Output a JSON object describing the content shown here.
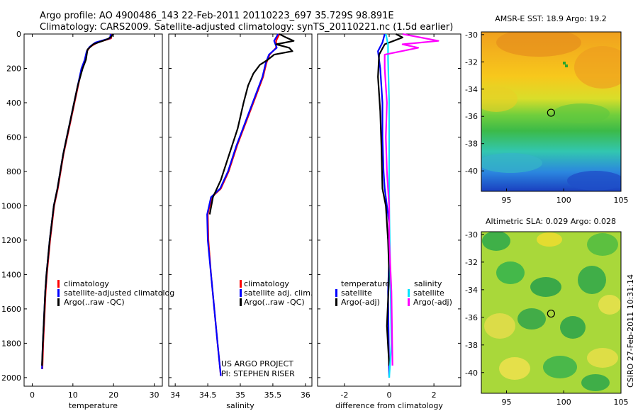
{
  "header": {
    "line1": "Argo profile: AO 4900486_143 22-Feb-2011 20110223_697 35.729S 98.891E",
    "line2": "Climatology: CARS2009. Satellite-adjusted climatology: synTS_20110221.nc (1.5d earlier)"
  },
  "colors": {
    "climatology": "#ff0000",
    "satellite": "#0000ff",
    "argo": "#000000",
    "sat_salinity": "#00e5ff",
    "argo_salinity": "#ff00ff"
  },
  "chart_data": [
    {
      "type": "line",
      "id": "temperature",
      "xlabel": "temperature",
      "xlim": [
        -2,
        32
      ],
      "ylim": [
        2050,
        0
      ],
      "xticks": [
        "0",
        "10",
        "20",
        "30"
      ],
      "xtick_values": [
        0,
        10,
        20,
        30
      ],
      "yticks": [
        "0",
        "200",
        "400",
        "600",
        "800",
        "1000",
        "1200",
        "1400",
        "1600",
        "1800",
        "2000"
      ],
      "ytick_values": [
        0,
        200,
        400,
        600,
        800,
        1000,
        1200,
        1400,
        1600,
        1800,
        2000
      ],
      "legend": [
        "climatology",
        "satellite-adjusted climatolog",
        "Argo(..raw -QC)"
      ],
      "series": [
        {
          "name": "climatology",
          "color_key": "climatology",
          "x": [
            19.6,
            19.4,
            16,
            14.2,
            13.5,
            13,
            12.2,
            11.3,
            10.4,
            9.5,
            8.6,
            7.7,
            6.3,
            5.4,
            4.9,
            4.4,
            4.0,
            3.6,
            3.3,
            3.0,
            2.7,
            2.5
          ],
          "y": [
            0,
            25,
            50,
            75,
            100,
            150,
            200,
            300,
            400,
            500,
            600,
            700,
            900,
            1000,
            1100,
            1200,
            1300,
            1400,
            1500,
            1650,
            1800,
            1950
          ]
        },
        {
          "name": "satellite-adjusted climatolog",
          "color_key": "satellite",
          "x": [
            19.3,
            19.1,
            15.5,
            14.1,
            13.4,
            12.9,
            12.1,
            11.2,
            10.3,
            9.4,
            8.5,
            7.6,
            6.2,
            5.3,
            4.8,
            4.3,
            3.9,
            3.5,
            3.2,
            2.9,
            2.6,
            2.4
          ],
          "y": [
            0,
            25,
            50,
            75,
            100,
            150,
            200,
            300,
            400,
            500,
            600,
            700,
            900,
            1000,
            1100,
            1200,
            1300,
            1400,
            1500,
            1650,
            1800,
            1950
          ]
        },
        {
          "name": "Argo(..raw -QC)",
          "color_key": "argo",
          "x": [
            19.8,
            19.5,
            18.5,
            15,
            13.6,
            13.2,
            12.4,
            11.2,
            10.3,
            9.4,
            8.5,
            7.6,
            6.2,
            5.3,
            4.8,
            4.3,
            3.9,
            3.5,
            3.2,
            2.9,
            2.6,
            2.4
          ],
          "y": [
            0,
            15,
            30,
            60,
            90,
            150,
            200,
            300,
            400,
            500,
            600,
            700,
            900,
            1000,
            1100,
            1200,
            1300,
            1400,
            1500,
            1650,
            1800,
            1930
          ]
        }
      ]
    },
    {
      "type": "line",
      "id": "salinity",
      "xlabel": "salinity",
      "xlim": [
        33.9,
        36.1
      ],
      "ylim": [
        2050,
        0
      ],
      "xticks": [
        "34",
        "34.5",
        "35",
        "35.5",
        "36"
      ],
      "xtick_values": [
        34,
        34.5,
        35,
        35.5,
        36
      ],
      "legend": [
        "climatology",
        "satellite adj. clim.",
        "Argo(..raw -QC)"
      ],
      "series": [
        {
          "name": "climatology",
          "color_key": "climatology",
          "x": [
            35.6,
            35.55,
            35.55,
            35.45,
            35.4,
            35.35,
            35.25,
            35.1,
            34.95,
            34.82,
            34.7,
            34.56,
            34.5,
            34.51,
            34.55,
            34.6,
            34.65,
            34.7
          ],
          "y": [
            0,
            40,
            80,
            120,
            170,
            250,
            350,
            500,
            650,
            800,
            900,
            950,
            1050,
            1200,
            1400,
            1600,
            1800,
            1990
          ]
        },
        {
          "name": "satellite adj. clim.",
          "color_key": "satellite",
          "x": [
            35.58,
            35.52,
            35.56,
            35.44,
            35.39,
            35.34,
            35.24,
            35.09,
            34.94,
            34.81,
            34.69,
            34.55,
            34.49,
            34.5,
            34.55,
            34.6,
            34.65,
            34.7
          ],
          "y": [
            0,
            40,
            80,
            120,
            170,
            250,
            350,
            500,
            650,
            800,
            900,
            950,
            1050,
            1200,
            1400,
            1600,
            1800,
            1990
          ]
        },
        {
          "name": "Argo(..raw -QC)",
          "color_key": "argo",
          "x": [
            35.6,
            35.7,
            35.82,
            35.55,
            35.75,
            35.8,
            35.52,
            35.42,
            35.3,
            35.2,
            35.12,
            35.05,
            34.96,
            34.83,
            34.7,
            34.58,
            34.53
          ],
          "y": [
            0,
            20,
            40,
            60,
            80,
            100,
            120,
            150,
            180,
            230,
            300,
            400,
            550,
            700,
            850,
            950,
            1050
          ]
        }
      ]
    },
    {
      "type": "line",
      "id": "difference",
      "xlabel": "difference from climatology",
      "xlim": [
        -3.2,
        3.2
      ],
      "ylim": [
        2050,
        0
      ],
      "xticks": [
        "-2",
        "0",
        "2"
      ],
      "xtick_values": [
        -2,
        0,
        2
      ],
      "legend_headers": [
        "temperature",
        "salinity"
      ],
      "legend": [
        "satellite",
        "Argo(-adj)",
        "satellite",
        "Argo(-adj)"
      ],
      "series": [
        {
          "name": "temperature satellite",
          "color_key": "satellite",
          "x": [
            -0.2,
            -0.3,
            -0.5,
            -0.4,
            -0.3,
            -0.3,
            -0.25,
            -0.2,
            -0.1,
            0.0,
            0.0,
            -0.05,
            0.0
          ],
          "y": [
            0,
            50,
            100,
            200,
            400,
            600,
            800,
            900,
            1000,
            1100,
            1300,
            1500,
            2000
          ]
        },
        {
          "name": "temperature Argo(-adj)",
          "color_key": "argo",
          "x": [
            0.3,
            0.6,
            -0.2,
            -0.45,
            -0.5,
            -0.4,
            -0.35,
            -0.3,
            -0.15,
            -0.1,
            -0.05,
            0.0,
            -0.1,
            0.0
          ],
          "y": [
            0,
            20,
            60,
            120,
            250,
            450,
            650,
            900,
            1000,
            1100,
            1200,
            1400,
            1700,
            1930
          ]
        },
        {
          "name": "salinity satellite",
          "color_key": "sat_salinity",
          "x": [
            -0.15,
            -0.1,
            -0.05,
            -0.05,
            0.0,
            0.0,
            0.0,
            0.05,
            0.1,
            0.0
          ],
          "y": [
            0,
            30,
            60,
            150,
            400,
            700,
            1000,
            1400,
            1800,
            2000
          ]
        },
        {
          "name": "salinity Argo(-adj)",
          "color_key": "argo_salinity",
          "x": [
            0.6,
            2.2,
            0.6,
            1.3,
            -0.2,
            -0.2,
            -0.1,
            -0.15,
            -0.1,
            0.0,
            0.0,
            0.1,
            0.15
          ],
          "y": [
            0,
            40,
            60,
            80,
            120,
            200,
            400,
            600,
            800,
            1000,
            1200,
            1500,
            1930
          ]
        }
      ]
    }
  ],
  "maps": [
    {
      "id": "sst",
      "title": "AMSR-E SST: 18.9 Argo: 19.2",
      "xticks": [
        "95",
        "100",
        "105"
      ],
      "yticks": [
        "-30",
        "-32",
        "-34",
        "-36",
        "-38",
        "-40"
      ],
      "lon_range": [
        92.8,
        105
      ],
      "lat_range": [
        -41.5,
        -29.8
      ],
      "marker": {
        "lon": 98.89,
        "lat": -35.73
      }
    },
    {
      "id": "sla",
      "title": "Altimetric SLA: 0.029 Argo: 0.028",
      "xticks": [
        "95",
        "100",
        "105"
      ],
      "yticks": [
        "-30",
        "-32",
        "-34",
        "-36",
        "-38",
        "-40"
      ],
      "lon_range": [
        92.8,
        105
      ],
      "lat_range": [
        -41.5,
        -29.8
      ],
      "marker": {
        "lon": 98.89,
        "lat": -35.73
      }
    }
  ],
  "annotations": {
    "project_line1": "US ARGO PROJECT",
    "project_line2": "PI: STEPHEN RISER",
    "credit": "CSIRO 27-Feb-2011 10:31:14"
  }
}
